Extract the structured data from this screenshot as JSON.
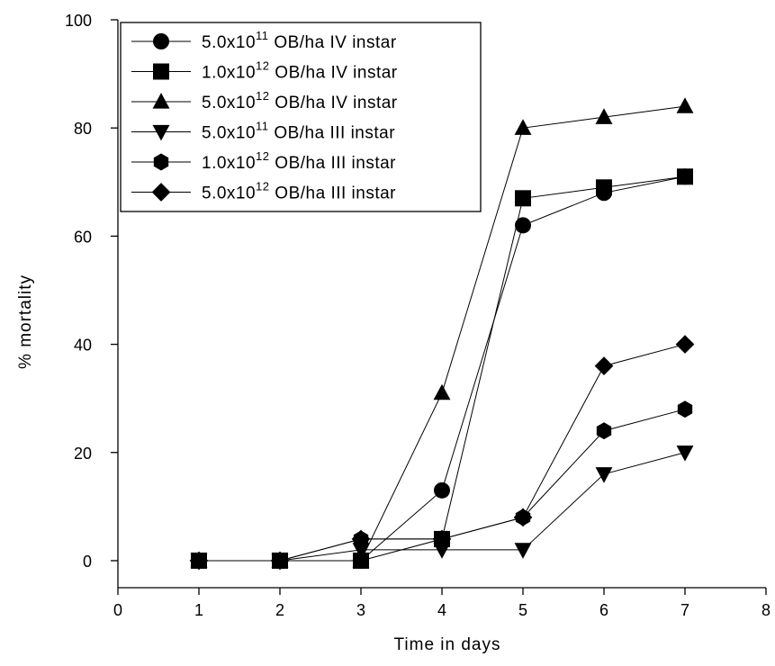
{
  "chart_data": {
    "type": "line",
    "xlabel": "Time in days",
    "ylabel": "% mortality",
    "xlim": [
      0,
      8
    ],
    "ylim": [
      -5,
      100
    ],
    "x_ticks": [
      0,
      1,
      2,
      3,
      4,
      5,
      6,
      7,
      8
    ],
    "y_ticks": [
      0,
      20,
      40,
      60,
      80,
      100
    ],
    "grid": false,
    "legend_position": "top-left",
    "x": [
      1,
      2,
      3,
      4,
      5,
      6,
      7
    ],
    "series": [
      {
        "name": "5.0x10¹¹ OB/ha IV instar",
        "legend": {
          "base": "5.0x10",
          "exp": "11",
          "rest": " OB/ha IV instar"
        },
        "marker": "circle",
        "values": [
          0,
          0,
          0,
          13,
          62,
          68,
          71
        ]
      },
      {
        "name": "1.0x10¹² OB/ha IV instar",
        "legend": {
          "base": "1.0x10",
          "exp": "12",
          "rest": " OB/ha IV instar"
        },
        "marker": "square",
        "values": [
          0,
          0,
          0,
          4,
          67,
          69,
          71
        ]
      },
      {
        "name": "5.0x10¹² OB/ha IV instar",
        "legend": {
          "base": "5.0x10",
          "exp": "12",
          "rest": " OB/ha IV instar"
        },
        "marker": "triangle-up",
        "values": [
          0,
          0,
          0,
          31,
          80,
          82,
          84
        ]
      },
      {
        "name": "5.0x10¹¹ OB/ha  III instar",
        "legend": {
          "base": "5.0x10",
          "exp": "11",
          "rest": " OB/ha  III instar"
        },
        "marker": "triangle-down",
        "values": [
          0,
          0,
          2,
          2,
          2,
          16,
          20
        ]
      },
      {
        "name": "1.0x10¹² OB/ha III instar",
        "legend": {
          "base": "1.0x10",
          "exp": "12",
          "rest": " OB/ha III instar"
        },
        "marker": "hexagon",
        "values": [
          0,
          0,
          4,
          4,
          8,
          24,
          28
        ]
      },
      {
        "name": "5.0x10¹² OB/ha III instar",
        "legend": {
          "base": "5.0x10",
          "exp": "12",
          "rest": " OB/ha III instar"
        },
        "marker": "diamond",
        "values": [
          0,
          0,
          4,
          4,
          8,
          36,
          40
        ]
      }
    ],
    "colors": {
      "line": "#000000",
      "marker": "#000000",
      "background": "#ffffff"
    }
  }
}
